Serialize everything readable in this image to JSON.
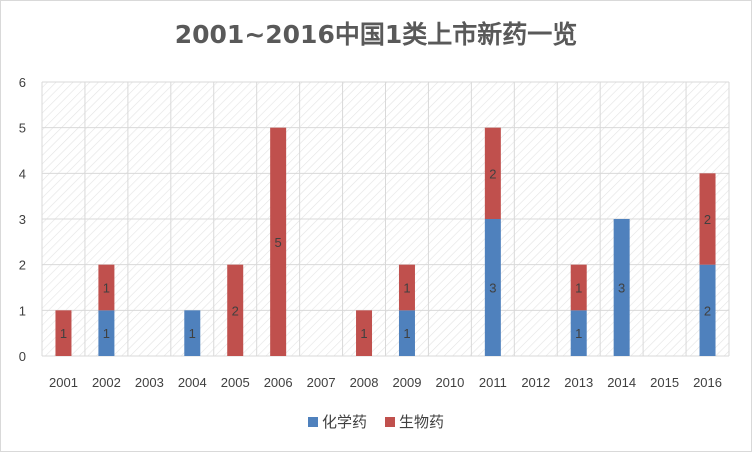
{
  "chart_data": {
    "type": "bar",
    "stacked": true,
    "title": "2001~2016中国1类上市新药一览",
    "categories": [
      "2001",
      "2002",
      "2003",
      "2004",
      "2005",
      "2006",
      "2007",
      "2008",
      "2009",
      "2010",
      "2011",
      "2012",
      "2013",
      "2014",
      "2015",
      "2016"
    ],
    "series": [
      {
        "name": "化学药",
        "color": "#4f81bd",
        "values": [
          0,
          1,
          0,
          1,
          0,
          0,
          0,
          0,
          1,
          0,
          3,
          0,
          1,
          3,
          0,
          2
        ]
      },
      {
        "name": "生物药",
        "color": "#c0504d",
        "values": [
          1,
          1,
          0,
          0,
          2,
          5,
          0,
          1,
          1,
          0,
          2,
          0,
          1,
          0,
          0,
          2
        ]
      }
    ],
    "ylim": [
      0,
      6
    ],
    "yticks": [
      0,
      1,
      2,
      3,
      4,
      5,
      6
    ],
    "grid": true,
    "legend_position": "bottom",
    "xlabel": "",
    "ylabel": ""
  }
}
